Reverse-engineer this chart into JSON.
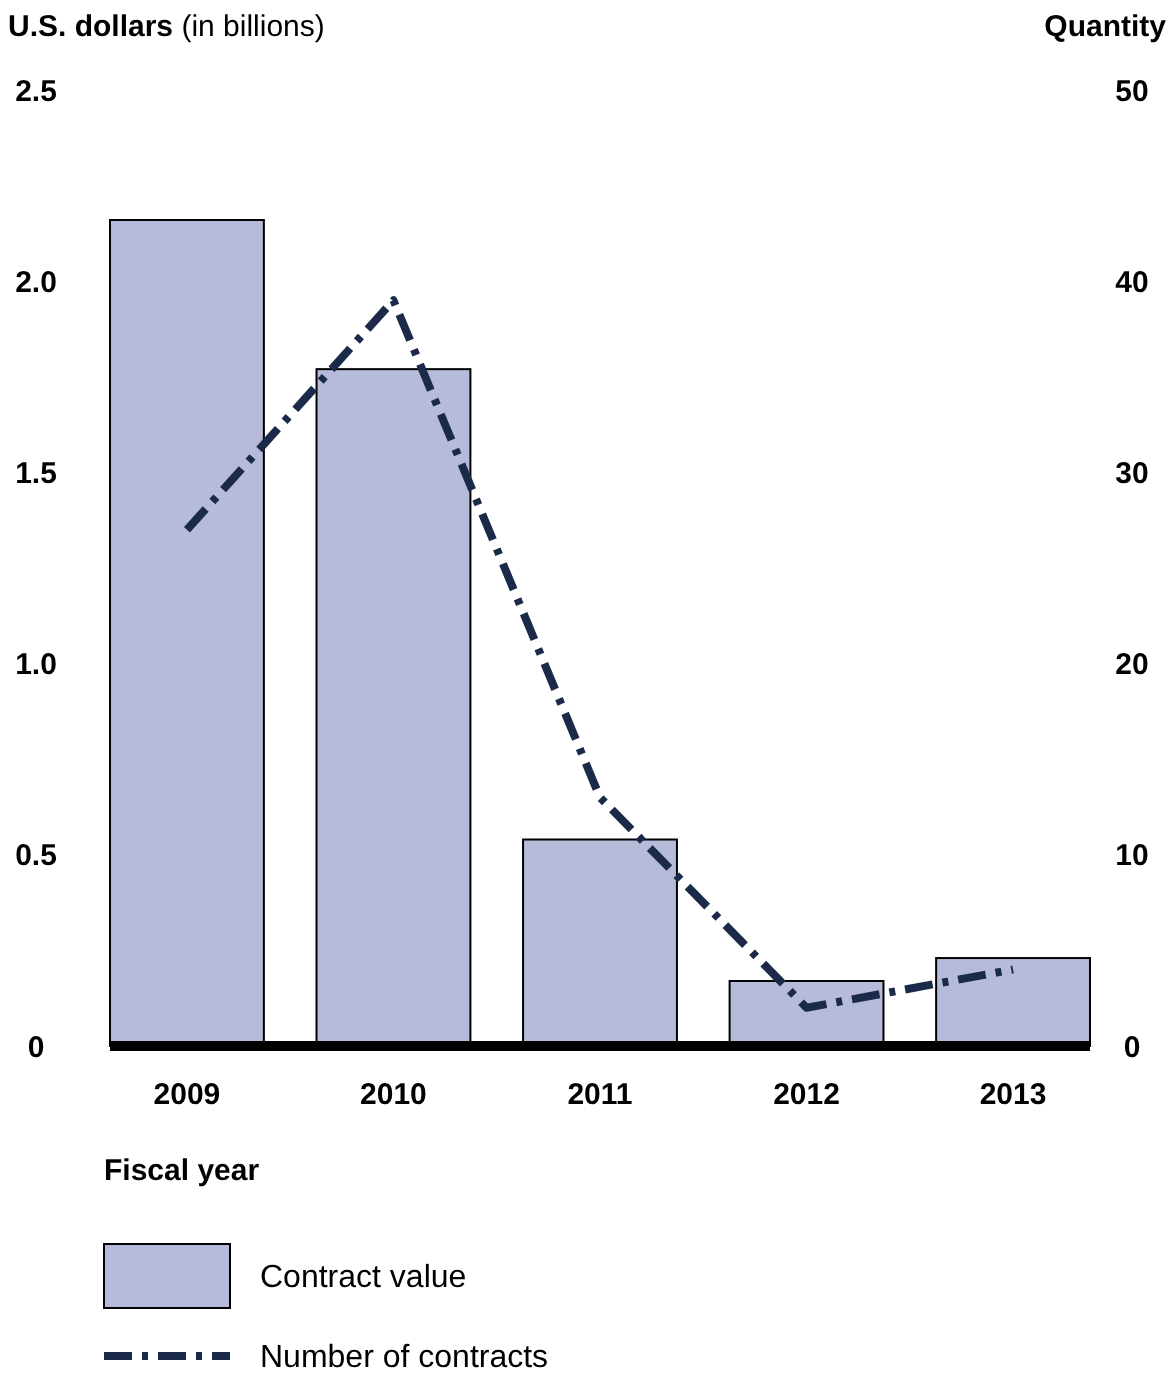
{
  "chart_data": {
    "type": "bar",
    "ylabel": "U.S. dollars (in billions)",
    "y2label": "Quantity",
    "xlabel": "Fiscal year",
    "categories": [
      "2009",
      "2010",
      "2011",
      "2012",
      "2013"
    ],
    "series": [
      {
        "name": "Contract value",
        "color": "#b6bbda",
        "values": [
          2.16,
          1.77,
          0.54,
          0.17,
          0.23
        ]
      },
      {
        "name": "Number of contracts",
        "type": "line",
        "axis": "y2",
        "color": "#1c2a4a",
        "line_style": "dashdot",
        "values": [
          27,
          39,
          13,
          2,
          4
        ]
      }
    ],
    "ylim": [
      0,
      2.5
    ],
    "yticks": [
      {
        "value": 0,
        "label": "0"
      },
      {
        "value": 0.5,
        "label": "0.5"
      },
      {
        "value": 1,
        "label": "1.0"
      },
      {
        "value": 1.5,
        "label": "1.5"
      },
      {
        "value": 2,
        "label": "2.0"
      },
      {
        "value": 2.5,
        "label": "2.5"
      }
    ],
    "y2lim": [
      0,
      50
    ],
    "y2ticks": [
      0,
      10,
      20,
      30,
      40,
      50
    ],
    "grid": false,
    "legend": "bottom"
  }
}
